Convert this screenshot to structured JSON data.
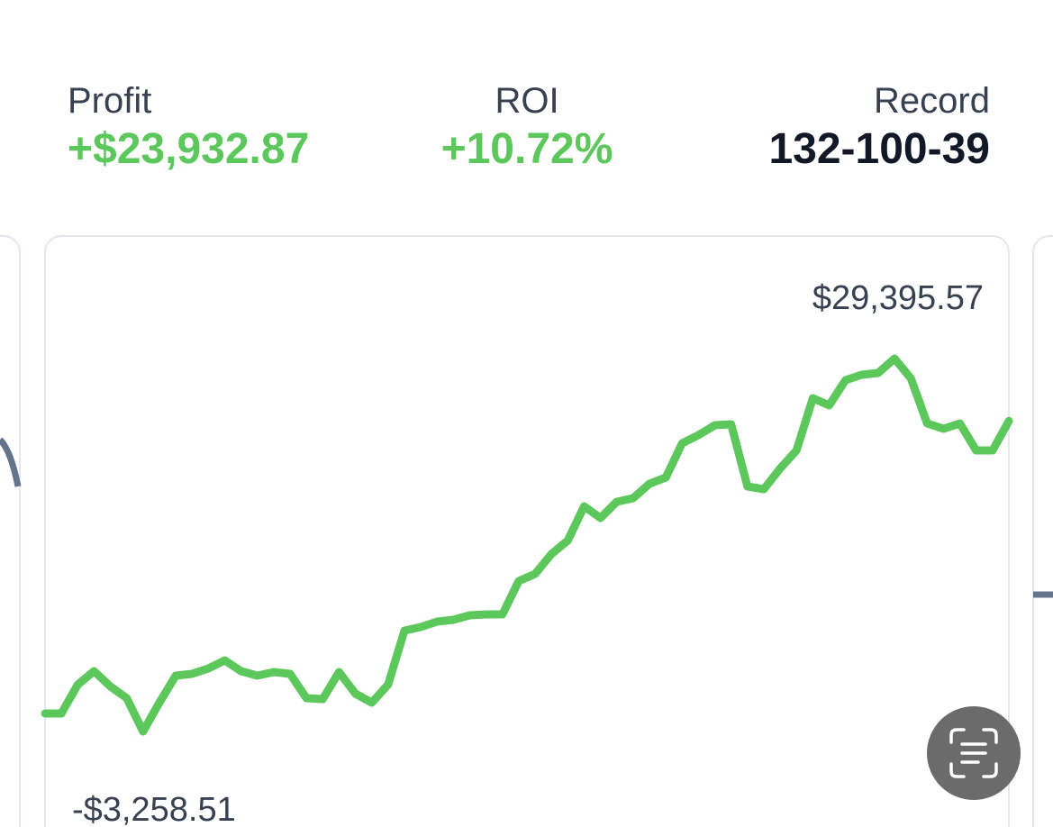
{
  "stats": [
    {
      "label": "Profit",
      "value": "+$23,932.87"
    },
    {
      "label": "ROI",
      "value": "+10.72%"
    },
    {
      "label": "Record",
      "value": "132-100-39"
    }
  ],
  "chart_data": {
    "type": "line",
    "color": "#5cc85c",
    "values": [
      -1681,
      -1681,
      843,
      2026,
      685,
      -340,
      -3258.51,
      -735,
      1631,
      1789,
      2262,
      2972,
      2026,
      1631,
      1947,
      1789,
      -340,
      -419,
      1947,
      54,
      -735,
      843,
      5575,
      5890,
      6363,
      6521,
      6916,
      6995,
      6995,
      9913,
      10544,
      12279,
      13462,
      16459,
      15434,
      16853,
      17169,
      18431,
      18983,
      21980,
      22690,
      23557,
      23636,
      18194,
      17958,
      19771,
      21349,
      25923,
      25292,
      27501,
      27974,
      28132,
      29395.57,
      27659,
      23715,
      23242,
      23715,
      21349,
      21349,
      23932.87
    ],
    "annotations": [
      {
        "value": 29395.57,
        "label": "$29,395.57"
      },
      {
        "value": -3258.51,
        "label": "-$3,258.51"
      }
    ]
  }
}
